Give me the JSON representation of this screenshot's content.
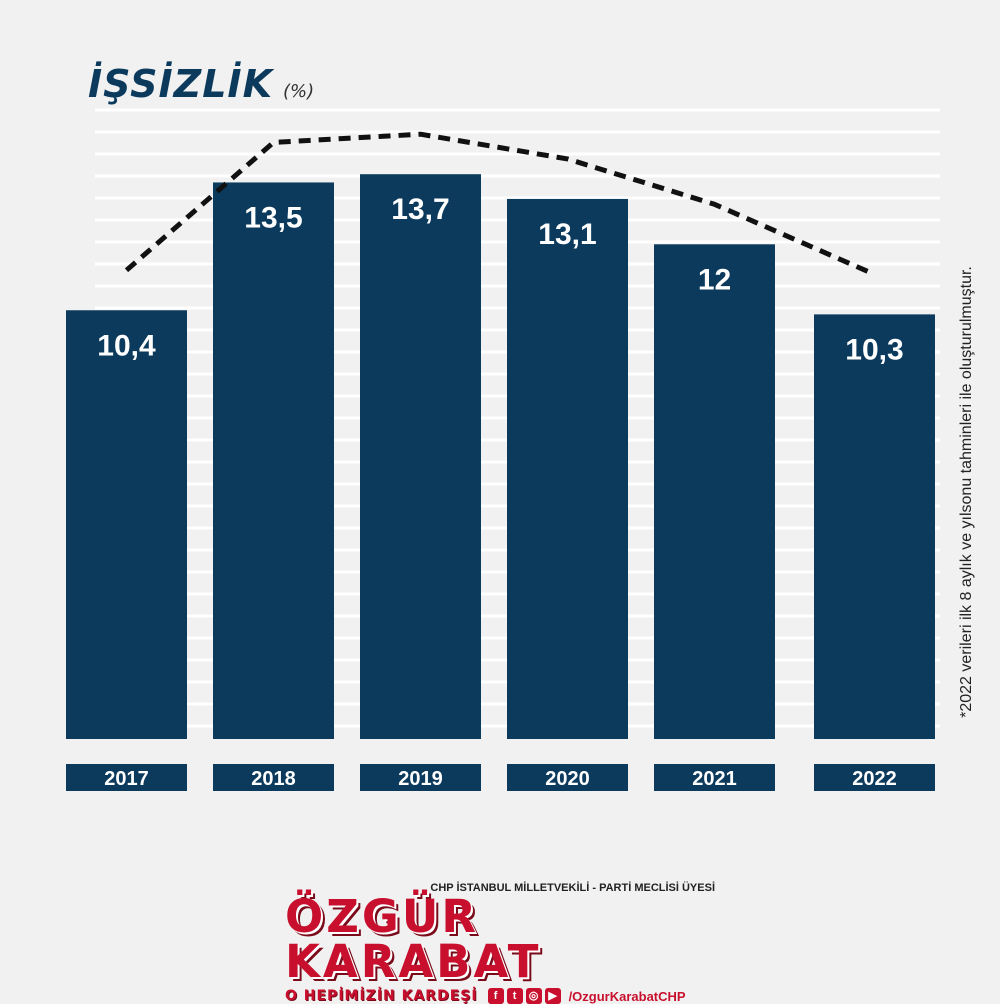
{
  "chart_data": {
    "type": "bar",
    "title": "İŞSİZLİK",
    "unit": "(%)",
    "categories": [
      "2017",
      "2018",
      "2019",
      "2020",
      "2021",
      "2022"
    ],
    "values": [
      10.4,
      13.5,
      13.7,
      13.1,
      12,
      10.3
    ],
    "value_labels": [
      "10,4",
      "13,5",
      "13,7",
      "13,1",
      "12",
      "10,3"
    ],
    "ylim": [
      0,
      15.5
    ],
    "grid": true,
    "trend_line": "dashed",
    "colors": {
      "bar": "#0b3a5d",
      "year_box": "#0b3a5d",
      "trend": "#111111",
      "grid": "#ffffff"
    },
    "footnote": "*2022 verileri ilk 8 aylık ve yılsonu tahminleri ile oluşturulmuştur."
  },
  "branding": {
    "subtitle": "CHP İSTANBUL MİLLETVEKİLİ - PARTİ MECLİSİ ÜYESİ",
    "name": "ÖZGÜR KARABAT",
    "slogan": "O HEPİMİZİN KARDEŞİ",
    "social_icons": [
      "facebook-icon",
      "twitter-icon",
      "instagram-icon",
      "youtube-icon"
    ],
    "handle": "/OzgurKarabatCHP"
  }
}
